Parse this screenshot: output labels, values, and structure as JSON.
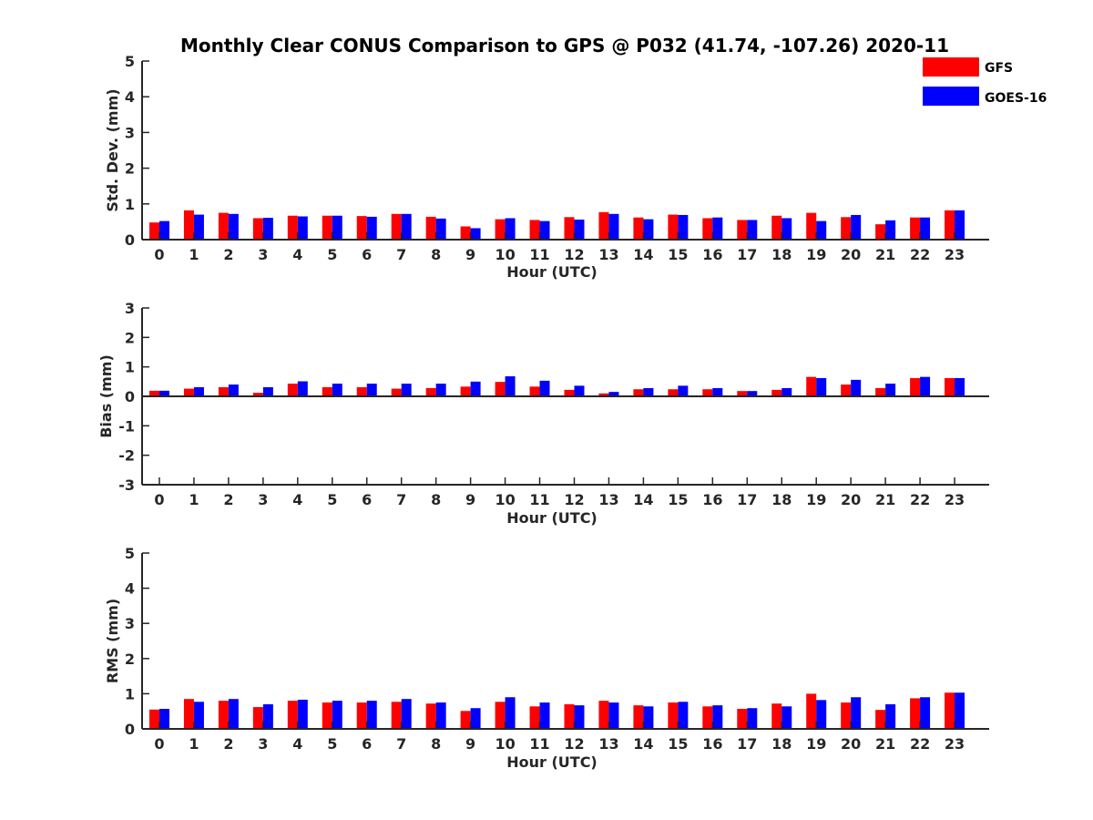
{
  "title": "Monthly Clear CONUS Comparison to GPS @ P032 (41.74, -107.26) 2020-11",
  "legend": [
    {
      "name": "GFS",
      "color": "#ff0000"
    },
    {
      "name": "GOES-16",
      "color": "#0000ff"
    }
  ],
  "chart_data": [
    {
      "type": "bar",
      "xlabel": "Hour (UTC)",
      "ylabel": "Std. Dev. (mm)",
      "ylim": [
        0,
        5
      ],
      "yticks": [
        0,
        1,
        2,
        3,
        4,
        5
      ],
      "categories": [
        "0",
        "1",
        "2",
        "3",
        "4",
        "5",
        "6",
        "7",
        "8",
        "9",
        "10",
        "11",
        "12",
        "13",
        "14",
        "15",
        "16",
        "17",
        "18",
        "19",
        "20",
        "21",
        "22",
        "23"
      ],
      "series": [
        {
          "name": "GFS",
          "values": [
            0.48,
            0.82,
            0.75,
            0.6,
            0.67,
            0.67,
            0.66,
            0.72,
            0.64,
            0.37,
            0.57,
            0.55,
            0.63,
            0.77,
            0.62,
            0.7,
            0.6,
            0.55,
            0.67,
            0.75,
            0.63,
            0.43,
            0.62,
            0.82
          ]
        },
        {
          "name": "GOES-16",
          "values": [
            0.52,
            0.7,
            0.72,
            0.61,
            0.65,
            0.67,
            0.64,
            0.72,
            0.59,
            0.32,
            0.6,
            0.52,
            0.56,
            0.72,
            0.57,
            0.69,
            0.62,
            0.55,
            0.6,
            0.52,
            0.69,
            0.54,
            0.62,
            0.82
          ]
        }
      ]
    },
    {
      "type": "bar",
      "xlabel": "Hour (UTC)",
      "ylabel": "Bias (mm)",
      "ylim": [
        -3,
        3
      ],
      "yticks": [
        -3,
        -2,
        -1,
        0,
        1,
        2,
        3
      ],
      "categories": [
        "0",
        "1",
        "2",
        "3",
        "4",
        "5",
        "6",
        "7",
        "8",
        "9",
        "10",
        "11",
        "12",
        "13",
        "14",
        "15",
        "16",
        "17",
        "18",
        "19",
        "20",
        "21",
        "22",
        "23"
      ],
      "series": [
        {
          "name": "GFS",
          "values": [
            0.19,
            0.26,
            0.31,
            0.12,
            0.43,
            0.31,
            0.31,
            0.26,
            0.28,
            0.33,
            0.49,
            0.33,
            0.22,
            0.1,
            0.24,
            0.24,
            0.24,
            0.18,
            0.22,
            0.66,
            0.4,
            0.28,
            0.62,
            0.62
          ]
        },
        {
          "name": "GOES-16",
          "values": [
            0.19,
            0.31,
            0.4,
            0.31,
            0.51,
            0.43,
            0.43,
            0.43,
            0.43,
            0.5,
            0.68,
            0.53,
            0.36,
            0.15,
            0.28,
            0.36,
            0.28,
            0.18,
            0.28,
            0.62,
            0.56,
            0.43,
            0.66,
            0.62
          ]
        }
      ]
    },
    {
      "type": "bar",
      "xlabel": "Hour (UTC)",
      "ylabel": "RMS (mm)",
      "ylim": [
        0,
        5
      ],
      "yticks": [
        0,
        1,
        2,
        3,
        4,
        5
      ],
      "categories": [
        "0",
        "1",
        "2",
        "3",
        "4",
        "5",
        "6",
        "7",
        "8",
        "9",
        "10",
        "11",
        "12",
        "13",
        "14",
        "15",
        "16",
        "17",
        "18",
        "19",
        "20",
        "21",
        "22",
        "23"
      ],
      "series": [
        {
          "name": "GFS",
          "values": [
            0.55,
            0.85,
            0.8,
            0.62,
            0.8,
            0.75,
            0.75,
            0.77,
            0.72,
            0.51,
            0.77,
            0.64,
            0.7,
            0.8,
            0.67,
            0.75,
            0.64,
            0.57,
            0.72,
            1.0,
            0.75,
            0.54,
            0.87,
            1.03
          ]
        },
        {
          "name": "GOES-16",
          "values": [
            0.57,
            0.77,
            0.85,
            0.7,
            0.83,
            0.8,
            0.8,
            0.85,
            0.75,
            0.59,
            0.9,
            0.75,
            0.67,
            0.75,
            0.64,
            0.77,
            0.67,
            0.59,
            0.64,
            0.82,
            0.9,
            0.7,
            0.9,
            1.03
          ]
        }
      ]
    }
  ]
}
